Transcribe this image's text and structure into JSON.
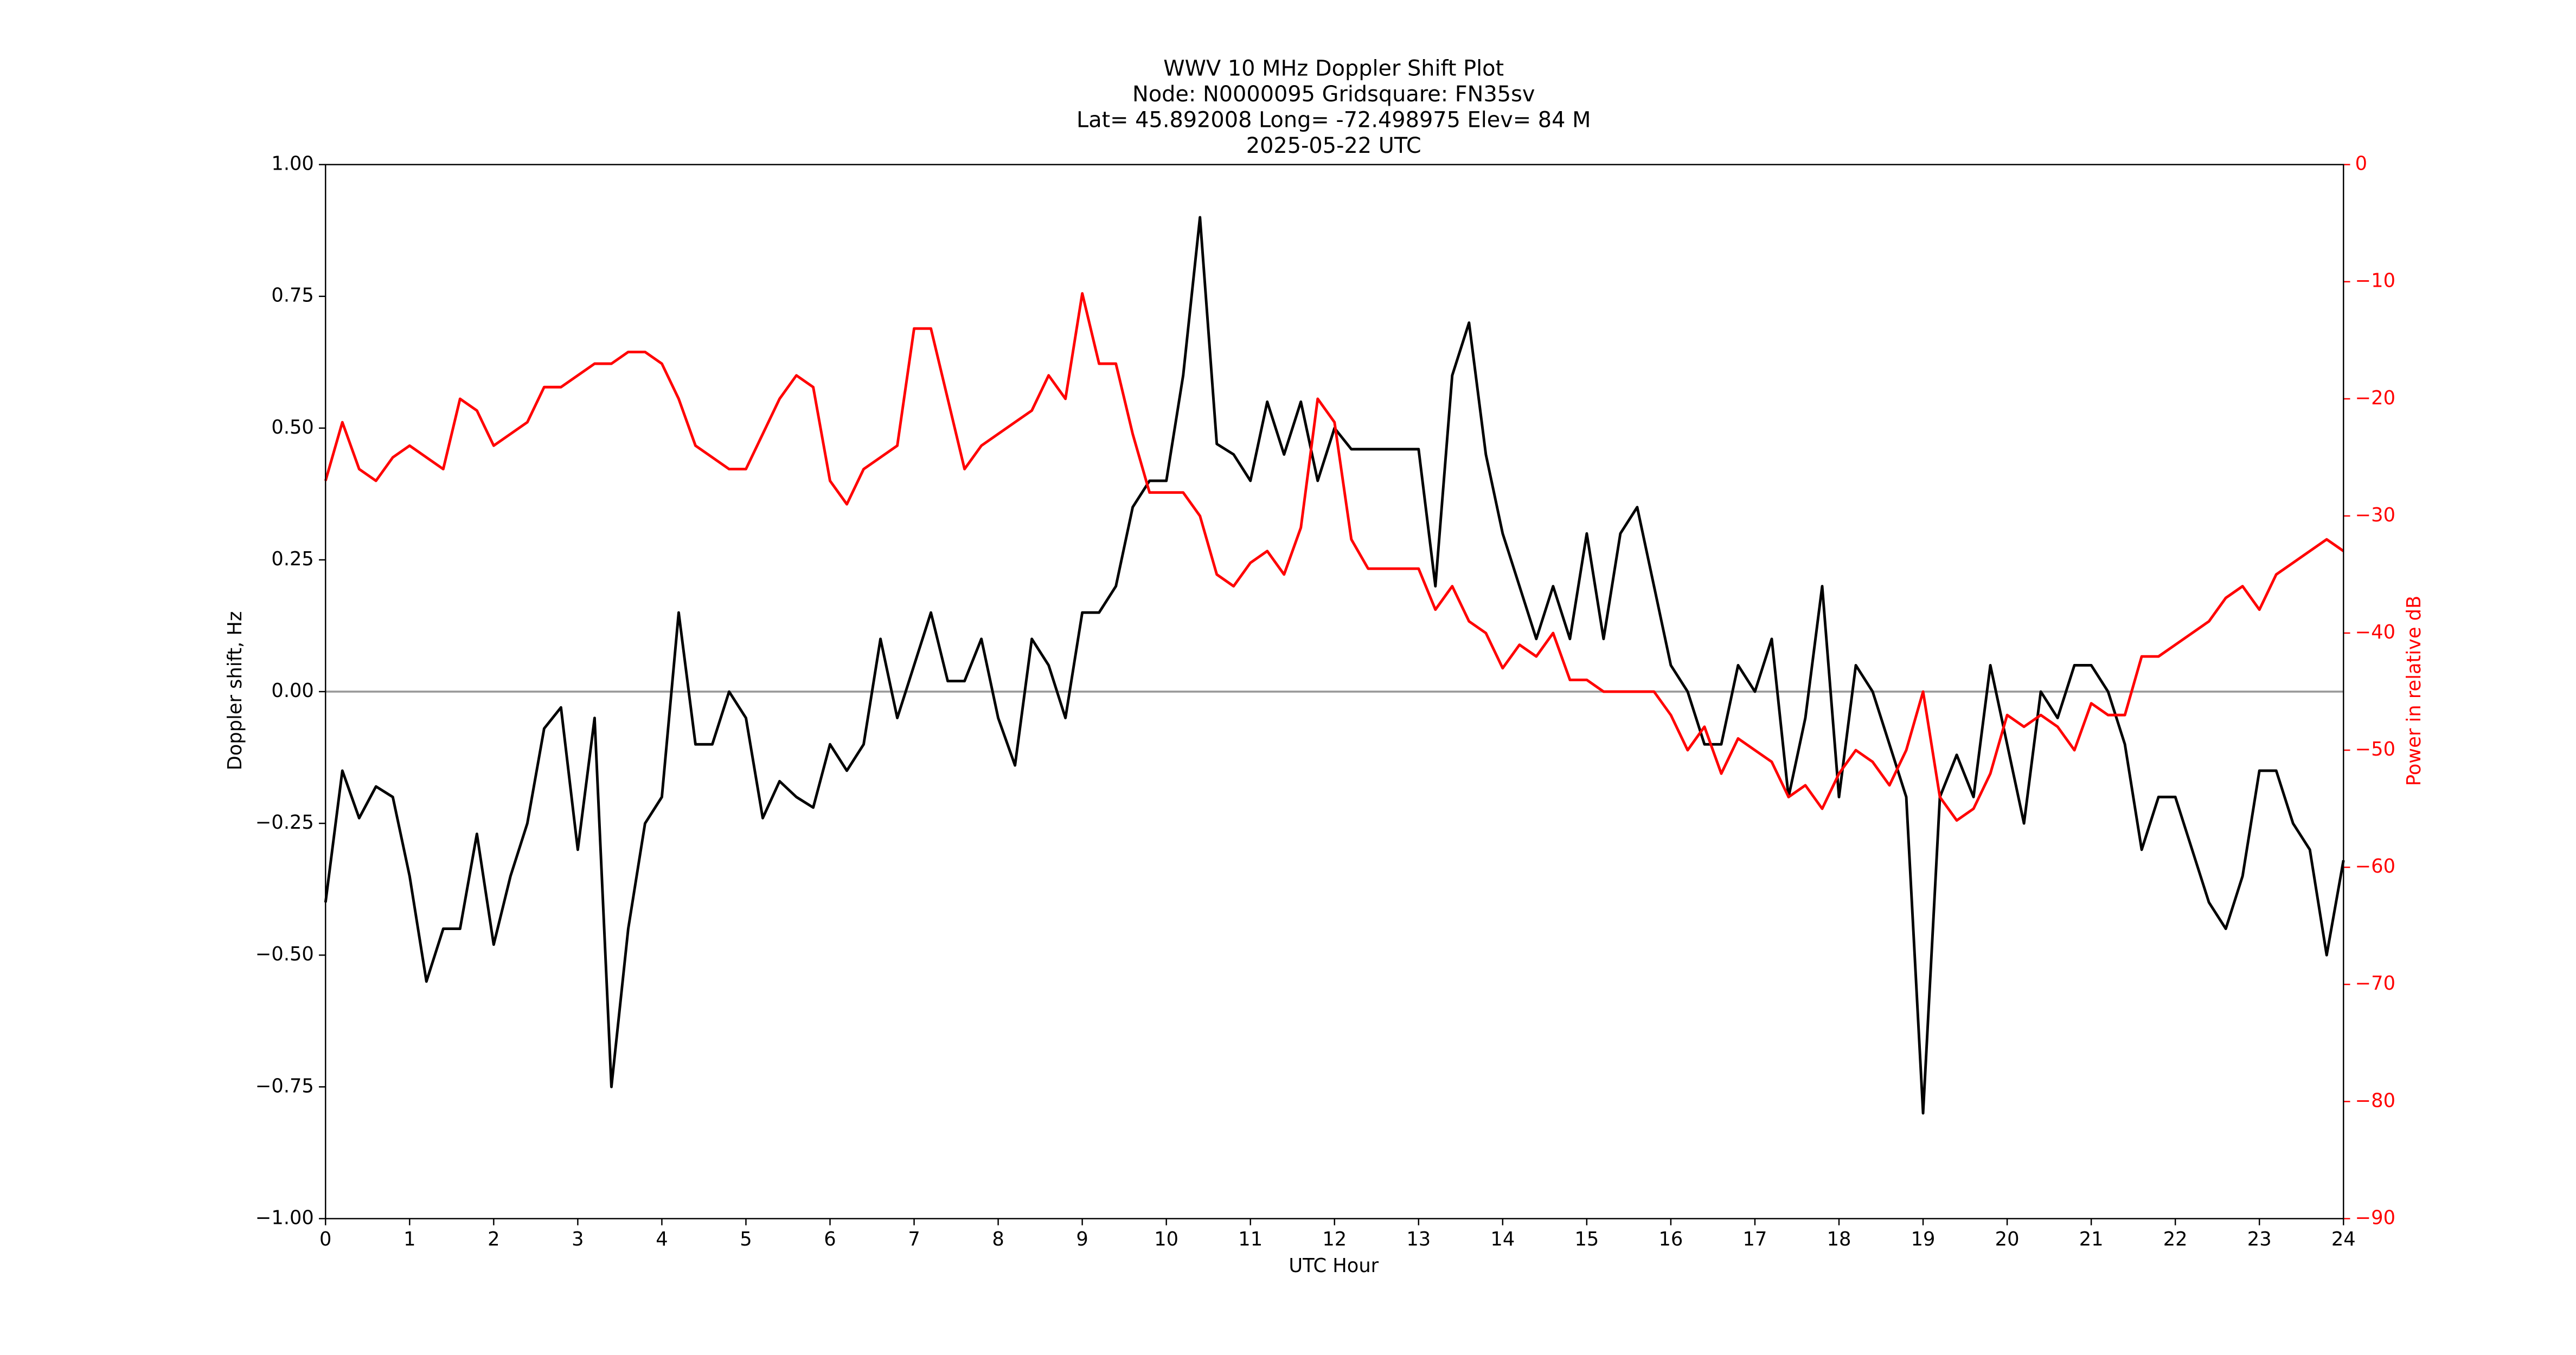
{
  "chart_data": {
    "type": "line",
    "title": [
      "WWV 10 MHz Doppler Shift Plot",
      "Node:  N0000095     Gridsquare:  FN35sv",
      "Lat= 45.892008    Long= -72.498975    Elev= 84 M",
      "2025-05-22  UTC"
    ],
    "xlabel": "UTC Hour",
    "ylabel": "Doppler shift, Hz",
    "y2label": "Power in relative dB",
    "x": [
      0,
      0.2,
      0.4,
      0.6,
      0.8,
      1,
      1.2,
      1.4,
      1.6,
      1.8,
      2,
      2.2,
      2.4,
      2.6,
      2.8,
      3,
      3.2,
      3.4,
      3.6,
      3.8,
      4,
      4.2,
      4.4,
      4.6,
      4.8,
      5,
      5.2,
      5.4,
      5.6,
      5.8,
      6,
      6.2,
      6.4,
      6.6,
      6.8,
      7,
      7.2,
      7.4,
      7.6,
      7.8,
      8,
      8.2,
      8.4,
      8.6,
      8.8,
      9,
      9.2,
      9.4,
      9.6,
      9.8,
      10,
      10.2,
      10.4,
      10.6,
      10.8,
      11,
      11.2,
      11.4,
      11.6,
      11.8,
      12,
      12.2,
      12.4,
      12.6,
      12.8,
      13,
      13.2,
      13.4,
      13.6,
      13.8,
      14,
      14.2,
      14.4,
      14.6,
      14.8,
      15,
      15.2,
      15.4,
      15.6,
      15.8,
      16,
      16.2,
      16.4,
      16.6,
      16.8,
      17,
      17.2,
      17.4,
      17.6,
      17.8,
      18,
      18.2,
      18.4,
      18.6,
      18.8,
      19,
      19.2,
      19.4,
      19.6,
      19.8,
      20,
      20.2,
      20.4,
      20.6,
      20.8,
      21,
      21.2,
      21.4,
      21.6,
      21.8,
      22,
      22.2,
      22.4,
      22.6,
      22.8,
      23,
      23.2,
      23.4,
      23.6,
      23.8,
      24
    ],
    "series": [
      {
        "name": "Doppler shift",
        "color": "#000000",
        "axis": "y",
        "values": [
          -0.4,
          -0.15,
          -0.24,
          -0.18,
          -0.2,
          -0.35,
          -0.55,
          -0.45,
          -0.45,
          -0.27,
          -0.48,
          -0.35,
          -0.25,
          -0.07,
          -0.03,
          -0.3,
          -0.05,
          -0.75,
          -0.45,
          -0.25,
          -0.2,
          0.15,
          -0.1,
          -0.1,
          0.0,
          -0.05,
          -0.24,
          -0.17,
          -0.2,
          -0.22,
          -0.1,
          -0.15,
          -0.1,
          0.1,
          -0.05,
          0.05,
          0.15,
          0.02,
          0.02,
          0.1,
          -0.05,
          -0.14,
          0.1,
          0.05,
          -0.05,
          0.15,
          0.15,
          0.2,
          0.35,
          0.4,
          0.4,
          0.6,
          0.9,
          0.47,
          0.45,
          0.4,
          0.55,
          0.45,
          0.55,
          0.4,
          0.5,
          0.46,
          0.46,
          0.46,
          0.46,
          0.46,
          0.2,
          0.6,
          0.7,
          0.45,
          0.3,
          0.2,
          0.1,
          0.2,
          0.1,
          0.3,
          0.1,
          0.3,
          0.35,
          0.2,
          0.05,
          0.0,
          -0.1,
          -0.1,
          0.05,
          0.0,
          0.1,
          -0.2,
          -0.05,
          0.2,
          -0.2,
          0.05,
          0.0,
          -0.1,
          -0.2,
          -0.8,
          -0.2,
          -0.12,
          -0.2,
          0.05,
          -0.1,
          -0.25,
          0.0,
          -0.05,
          0.05,
          0.05,
          0.0,
          -0.1,
          -0.3,
          -0.2,
          -0.2,
          -0.3,
          -0.4,
          -0.45,
          -0.35,
          -0.15,
          -0.15,
          -0.25,
          -0.3,
          -0.5,
          -0.32
        ]
      },
      {
        "name": "Power",
        "color": "#ff0000",
        "axis": "y2",
        "values": [
          -27,
          -22,
          -26,
          -27,
          -25,
          -24,
          -25,
          -26,
          -20,
          -21,
          -24,
          -23,
          -22,
          -19,
          -19,
          -18,
          -17,
          -17,
          -16,
          -16,
          -17,
          -20,
          -24,
          -25,
          -26,
          -26,
          -23,
          -20,
          -18,
          -19,
          -27,
          -29,
          -26,
          -25,
          -24,
          -14,
          -14,
          -20,
          -26,
          -24,
          -23,
          -22,
          -21,
          -18,
          -20,
          -11,
          -17,
          -17,
          -23,
          -28,
          -28,
          -28,
          -30,
          -35,
          -36,
          -34,
          -33,
          -35,
          -31,
          -20,
          -22,
          -32,
          -34.5,
          -34.5,
          -34.5,
          -34.5,
          -38,
          -36,
          -39,
          -40,
          -43,
          -41,
          -42,
          -40,
          -44,
          -44,
          -45,
          -45,
          -45,
          -45,
          -47,
          -50,
          -48,
          -52,
          -49,
          -50,
          -51,
          -54,
          -53,
          -55,
          -52,
          -50,
          -51,
          -53,
          -50,
          -45,
          -54,
          -56,
          -55,
          -52,
          -47,
          -48,
          -47,
          -48,
          -50,
          -46,
          -47,
          -47,
          -42,
          -42,
          -41,
          -40,
          -39,
          -37,
          -36,
          -38,
          -35,
          -34,
          -33,
          -32,
          -33
        ]
      }
    ],
    "axhline": 0,
    "axhline_color": "#999999",
    "xlim": [
      0,
      24
    ],
    "xticks": [
      0,
      1,
      2,
      3,
      4,
      5,
      6,
      7,
      8,
      9,
      10,
      11,
      12,
      13,
      14,
      15,
      16,
      17,
      18,
      19,
      20,
      21,
      22,
      23,
      24
    ],
    "ylim": [
      -1,
      1
    ],
    "yticks": [
      {
        "value": -1,
        "label": "−1.00"
      },
      {
        "value": -0.75,
        "label": "−0.75"
      },
      {
        "value": -0.5,
        "label": "−0.50"
      },
      {
        "value": -0.25,
        "label": "−0.25"
      },
      {
        "value": 0,
        "label": "0.00"
      },
      {
        "value": 0.25,
        "label": "0.25"
      },
      {
        "value": 0.5,
        "label": "0.50"
      },
      {
        "value": 0.75,
        "label": "0.75"
      },
      {
        "value": 1,
        "label": "1.00"
      }
    ],
    "y2lim": [
      -90,
      0
    ],
    "y2ticks": [
      {
        "value": -90,
        "label": "−90"
      },
      {
        "value": -80,
        "label": "−80"
      },
      {
        "value": -70,
        "label": "−70"
      },
      {
        "value": -60,
        "label": "−60"
      },
      {
        "value": -50,
        "label": "−50"
      },
      {
        "value": -40,
        "label": "−40"
      },
      {
        "value": -30,
        "label": "−30"
      },
      {
        "value": -20,
        "label": "−20"
      },
      {
        "value": -10,
        "label": "−10"
      },
      0
    ],
    "y2color": "#ff0000"
  }
}
